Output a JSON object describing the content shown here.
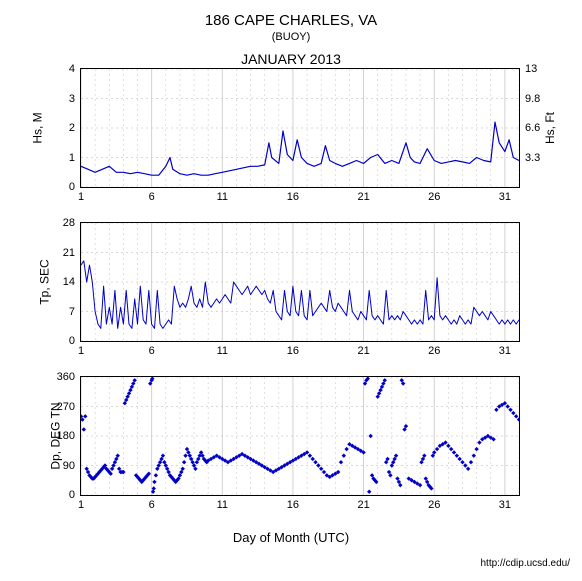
{
  "header": {
    "title": "186 CAPE CHARLES, VA",
    "subtitle": "(BUOY)",
    "month": "JANUARY 2013"
  },
  "xaxis": {
    "label": "Day of Month (UTC)",
    "min": 1,
    "max": 32,
    "ticks": [
      1,
      6,
      11,
      16,
      21,
      26,
      31
    ],
    "grid_color": "#cccccc"
  },
  "credit": "http://cdip.ucsd.edu/",
  "colors": {
    "line": "#0000c8",
    "scatter": "#0000c8",
    "axis": "#000000",
    "grid": "#cccccc",
    "background": "#ffffff"
  },
  "panels": [
    {
      "id": "hs",
      "type": "line",
      "ylabel_left": "Hs, M",
      "ylabel_right": "Hs, Ft",
      "ymin": 0,
      "ymax": 4,
      "yticks_left": [
        0,
        1,
        2,
        3,
        4
      ],
      "yticks_right": [
        3.3,
        6.6,
        9.8,
        13
      ],
      "line_width": 1.2,
      "data_x": [
        1,
        1.5,
        2,
        2.5,
        3,
        3.5,
        4,
        4.5,
        5,
        5.5,
        6,
        6.5,
        7,
        7.3,
        7.5,
        8,
        8.5,
        9,
        9.5,
        10,
        10.5,
        11,
        11.5,
        12,
        12.5,
        13,
        13.5,
        14,
        14.3,
        14.5,
        15,
        15.3,
        15.6,
        16,
        16.3,
        16.6,
        17,
        17.5,
        18,
        18.3,
        18.6,
        19,
        19.5,
        20,
        20.5,
        21,
        21.5,
        22,
        22.5,
        23,
        23.5,
        24,
        24.3,
        24.6,
        25,
        25.5,
        26,
        26.5,
        27,
        27.5,
        28,
        28.5,
        29,
        29.5,
        30,
        30.3,
        30.6,
        31,
        31.3,
        31.6,
        32
      ],
      "data_y": [
        0.7,
        0.6,
        0.5,
        0.6,
        0.7,
        0.5,
        0.5,
        0.45,
        0.5,
        0.45,
        0.4,
        0.4,
        0.7,
        1.0,
        0.6,
        0.45,
        0.4,
        0.45,
        0.4,
        0.4,
        0.45,
        0.5,
        0.55,
        0.6,
        0.65,
        0.7,
        0.7,
        0.75,
        1.5,
        1.0,
        0.8,
        1.9,
        1.1,
        0.9,
        1.6,
        1.0,
        0.8,
        0.7,
        0.8,
        1.4,
        0.9,
        0.8,
        0.7,
        0.8,
        0.9,
        0.8,
        1.0,
        1.1,
        0.8,
        0.9,
        0.8,
        1.5,
        1.0,
        0.85,
        0.8,
        1.3,
        0.9,
        0.8,
        0.85,
        0.9,
        0.85,
        0.8,
        1.0,
        0.9,
        0.85,
        2.2,
        1.5,
        1.2,
        1.6,
        1.0,
        0.9
      ]
    },
    {
      "id": "tp",
      "type": "line",
      "ylabel_left": "Tp, SEC",
      "ymin": 0,
      "ymax": 28,
      "yticks_left": [
        0,
        7,
        14,
        21,
        28
      ],
      "line_width": 1.0,
      "data_x": [
        1,
        1.2,
        1.4,
        1.6,
        1.8,
        2,
        2.2,
        2.4,
        2.6,
        2.8,
        3,
        3.2,
        3.4,
        3.6,
        3.8,
        4,
        4.2,
        4.4,
        4.6,
        4.8,
        5,
        5.2,
        5.4,
        5.6,
        5.8,
        6,
        6.2,
        6.4,
        6.6,
        6.8,
        7,
        7.2,
        7.4,
        7.6,
        7.8,
        8,
        8.2,
        8.4,
        8.6,
        8.8,
        9,
        9.2,
        9.4,
        9.6,
        9.8,
        10,
        10.2,
        10.4,
        10.6,
        10.8,
        11,
        11.2,
        11.4,
        11.6,
        11.8,
        12,
        12.2,
        12.4,
        12.6,
        12.8,
        13,
        13.2,
        13.4,
        13.6,
        13.8,
        14,
        14.2,
        14.4,
        14.6,
        14.8,
        15,
        15.2,
        15.4,
        15.6,
        15.8,
        16,
        16.2,
        16.4,
        16.6,
        16.8,
        17,
        17.2,
        17.4,
        17.6,
        17.8,
        18,
        18.2,
        18.4,
        18.6,
        18.8,
        19,
        19.2,
        19.4,
        19.6,
        19.8,
        20,
        20.2,
        20.4,
        20.6,
        20.8,
        21,
        21.2,
        21.4,
        21.6,
        21.8,
        22,
        22.2,
        22.4,
        22.6,
        22.8,
        23,
        23.2,
        23.4,
        23.6,
        23.8,
        24,
        24.2,
        24.4,
        24.6,
        24.8,
        25,
        25.2,
        25.4,
        25.6,
        25.8,
        26,
        26.2,
        26.4,
        26.6,
        26.8,
        27,
        27.2,
        27.4,
        27.6,
        27.8,
        28,
        28.2,
        28.4,
        28.6,
        28.8,
        29,
        29.2,
        29.4,
        29.6,
        29.8,
        30,
        30.2,
        30.4,
        30.6,
        30.8,
        31,
        31.2,
        31.4,
        31.6,
        31.8,
        32
      ],
      "data_y": [
        18,
        19,
        14,
        18,
        14,
        7,
        4,
        3,
        13,
        4,
        8,
        4,
        12,
        3,
        8,
        4,
        12,
        4,
        3,
        10,
        4,
        13,
        5,
        4,
        12,
        4,
        3,
        12,
        4,
        3,
        4,
        5,
        4,
        13,
        10,
        8,
        9,
        8,
        10,
        13,
        9,
        8,
        10,
        8,
        14,
        9,
        8,
        9,
        10,
        9,
        10,
        11,
        10,
        9,
        14,
        13,
        12,
        11,
        12,
        13,
        11,
        12,
        13,
        12,
        11,
        12,
        10,
        9,
        12,
        7,
        6,
        5,
        12,
        7,
        6,
        13,
        7,
        6,
        12,
        6,
        5,
        12,
        6,
        7,
        8,
        9,
        8,
        7,
        12,
        8,
        7,
        9,
        8,
        7,
        6,
        12,
        7,
        6,
        5,
        7,
        6,
        5,
        12,
        6,
        5,
        6,
        5,
        4,
        12,
        5,
        6,
        5,
        6,
        5,
        7,
        6,
        5,
        4,
        5,
        4,
        5,
        4,
        12,
        5,
        6,
        5,
        15,
        6,
        5,
        6,
        5,
        4,
        5,
        4,
        6,
        5,
        4,
        5,
        4,
        8,
        7,
        6,
        7,
        6,
        5,
        7,
        6,
        5,
        4,
        5,
        4,
        5,
        4,
        5,
        4,
        5
      ]
    },
    {
      "id": "dp",
      "type": "scatter",
      "ylabel_left": "Dp, DEG TN",
      "ymin": 0,
      "ymax": 360,
      "yticks_left": [
        0,
        90,
        180,
        270,
        360
      ],
      "marker_size": 2.2,
      "data_x": [
        1,
        1.1,
        1.2,
        1.3,
        1.4,
        1.5,
        1.6,
        1.7,
        1.8,
        1.9,
        2,
        2.1,
        2.2,
        2.3,
        2.4,
        2.5,
        2.6,
        2.7,
        2.8,
        2.9,
        3,
        3.1,
        3.2,
        3.3,
        3.4,
        3.5,
        3.6,
        3.7,
        3.8,
        3.9,
        4,
        4.1,
        4.2,
        4.3,
        4.4,
        4.5,
        4.6,
        4.7,
        4.8,
        4.9,
        5,
        5.1,
        5.2,
        5.3,
        5.4,
        5.5,
        5.6,
        5.7,
        5.8,
        5.9,
        6,
        6.05,
        6.1,
        6.15,
        6.2,
        6.3,
        6.4,
        6.5,
        6.6,
        6.7,
        6.8,
        6.9,
        7,
        7.1,
        7.2,
        7.3,
        7.4,
        7.5,
        7.6,
        7.7,
        7.8,
        7.9,
        8,
        8.1,
        8.2,
        8.3,
        8.4,
        8.5,
        8.6,
        8.7,
        8.8,
        8.9,
        9,
        9.1,
        9.2,
        9.3,
        9.4,
        9.5,
        9.6,
        9.7,
        9.8,
        9.9,
        10,
        10.2,
        10.4,
        10.6,
        10.8,
        11,
        11.2,
        11.4,
        11.6,
        11.8,
        12,
        12.2,
        12.4,
        12.6,
        12.8,
        13,
        13.2,
        13.4,
        13.6,
        13.8,
        14,
        14.2,
        14.4,
        14.6,
        14.8,
        15,
        15.2,
        15.4,
        15.6,
        15.8,
        16,
        16.2,
        16.4,
        16.6,
        16.8,
        17,
        17.2,
        17.4,
        17.6,
        17.8,
        18,
        18.2,
        18.4,
        18.6,
        18.8,
        19,
        19.2,
        19.4,
        19.6,
        19.8,
        20,
        20.2,
        20.4,
        20.6,
        20.8,
        21,
        21.1,
        21.2,
        21.3,
        21.4,
        21.5,
        21.6,
        21.7,
        21.8,
        21.9,
        22,
        22.1,
        22.2,
        22.3,
        22.4,
        22.5,
        22.6,
        22.7,
        22.8,
        22.9,
        23,
        23.1,
        23.2,
        23.3,
        23.4,
        23.5,
        23.6,
        23.7,
        23.8,
        23.9,
        24,
        24.2,
        24.4,
        24.6,
        24.8,
        25,
        25.1,
        25.2,
        25.3,
        25.4,
        25.5,
        25.6,
        25.7,
        25.8,
        25.9,
        26,
        26.2,
        26.4,
        26.6,
        26.8,
        27,
        27.2,
        27.4,
        27.6,
        27.8,
        28,
        28.2,
        28.4,
        28.6,
        28.8,
        29,
        29.2,
        29.4,
        29.6,
        29.8,
        30,
        30.2,
        30.4,
        30.6,
        30.8,
        31,
        31.2,
        31.4,
        31.6,
        31.8,
        32
      ],
      "data_y": [
        240,
        230,
        200,
        240,
        80,
        70,
        60,
        55,
        50,
        50,
        55,
        60,
        65,
        70,
        75,
        80,
        85,
        90,
        80,
        75,
        70,
        65,
        80,
        90,
        100,
        110,
        120,
        80,
        70,
        70,
        70,
        280,
        290,
        300,
        310,
        320,
        330,
        340,
        350,
        60,
        55,
        50,
        45,
        40,
        45,
        50,
        55,
        60,
        65,
        340,
        350,
        355,
        10,
        20,
        40,
        60,
        80,
        90,
        100,
        110,
        120,
        100,
        90,
        80,
        70,
        60,
        55,
        50,
        45,
        40,
        45,
        50,
        60,
        70,
        80,
        100,
        120,
        140,
        130,
        120,
        110,
        100,
        90,
        80,
        100,
        110,
        120,
        130,
        120,
        110,
        105,
        100,
        105,
        110,
        115,
        120,
        115,
        110,
        105,
        100,
        105,
        110,
        115,
        120,
        125,
        120,
        115,
        110,
        105,
        100,
        95,
        90,
        85,
        80,
        75,
        70,
        75,
        80,
        85,
        90,
        95,
        100,
        105,
        110,
        115,
        120,
        125,
        130,
        120,
        110,
        100,
        90,
        80,
        70,
        60,
        55,
        60,
        65,
        70,
        100,
        120,
        140,
        155,
        150,
        145,
        140,
        135,
        130,
        340,
        350,
        355,
        10,
        180,
        60,
        50,
        45,
        40,
        300,
        310,
        320,
        330,
        340,
        350,
        100,
        110,
        70,
        60,
        90,
        100,
        110,
        120,
        50,
        40,
        30,
        350,
        340,
        200,
        210,
        50,
        45,
        40,
        35,
        30,
        100,
        110,
        120,
        50,
        40,
        30,
        25,
        20,
        120,
        130,
        140,
        150,
        155,
        160,
        150,
        140,
        130,
        120,
        110,
        100,
        90,
        80,
        100,
        120,
        140,
        160,
        170,
        175,
        180,
        175,
        170,
        260,
        270,
        275,
        280,
        270,
        260,
        250,
        240,
        230
      ]
    }
  ]
}
